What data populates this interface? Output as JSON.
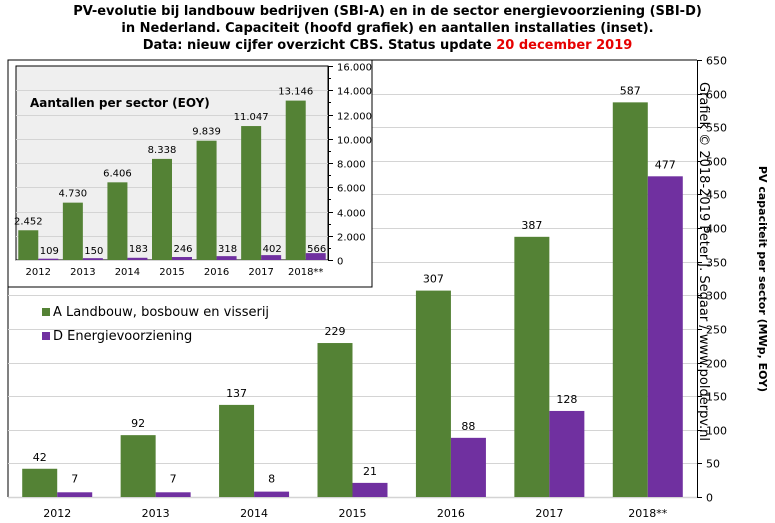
{
  "title": {
    "line1": "PV-evolutie bij landbouw bedrijven (SBI-A) en in de sector energievoorziening (SBI-D)",
    "line2": "in Nederland. Capaciteit (hoofd grafiek) en aantallen installaties (inset).",
    "line3_prefix": "Data: nieuw cijfer overzicht CBS. Status update ",
    "line3_highlight": "20 december 2019"
  },
  "colors": {
    "green": "#548235",
    "purple": "#7030a0",
    "highlight": "#e60000",
    "inset_bg": "#efefef",
    "grid": "#d4d4d4"
  },
  "watermark": "Grafiek © 2018-2019  Peter J. Segaar / www.polderpv.nl",
  "chart_data": [
    {
      "id": "main",
      "type": "bar",
      "title": "",
      "categories": [
        "2012",
        "2013",
        "2014",
        "2015",
        "2016",
        "2017",
        "2018**"
      ],
      "series": [
        {
          "name": "A Landbouw, bosbouw en visserij",
          "values": [
            42,
            92,
            137,
            229,
            307,
            387,
            587
          ]
        },
        {
          "name": "D Energievoorziening",
          "values": [
            7,
            7,
            8,
            21,
            88,
            128,
            477
          ]
        }
      ],
      "xlabel": "",
      "ylabel": "PV capaciteit per sector (MWp, EOY)",
      "ylim": [
        0,
        650
      ],
      "yticks": [
        0,
        50,
        100,
        150,
        200,
        250,
        300,
        350,
        400,
        450,
        500,
        550,
        600,
        650
      ],
      "ytick_labels": [
        "0",
        "50",
        "100",
        "150",
        "200",
        "250",
        "300",
        "350",
        "400",
        "450",
        "500",
        "550",
        "600",
        "650"
      ],
      "y_axis_side": "right",
      "grid": true,
      "legend_placement": "middle-left"
    },
    {
      "id": "inset",
      "type": "bar",
      "title": "Aantallen per sector (EOY)",
      "categories": [
        "2012",
        "2013",
        "2014",
        "2015",
        "2016",
        "2017",
        "2018**"
      ],
      "series": [
        {
          "name": "A Landbouw, bosbouw en visserij",
          "values": [
            2452,
            4730,
            6406,
            8338,
            9839,
            11047,
            13146
          ],
          "labels": [
            "2.452",
            "4.730",
            "6.406",
            "8.338",
            "9.839",
            "11.047",
            "13.146"
          ]
        },
        {
          "name": "D Energievoorziening",
          "values": [
            109,
            150,
            183,
            246,
            318,
            402,
            566
          ],
          "labels": [
            "109",
            "150",
            "183",
            "246",
            "318",
            "402",
            "566"
          ]
        }
      ],
      "ylim": [
        0,
        16000
      ],
      "yticks": [
        0,
        2000,
        4000,
        6000,
        8000,
        10000,
        12000,
        14000,
        16000
      ],
      "ytick_labels": [
        "0",
        "2.000",
        "4.000",
        "6.000",
        "8.000",
        "10.000",
        "12.000",
        "14.000",
        "16.000"
      ],
      "y_axis_side": "right",
      "grid": true
    }
  ]
}
